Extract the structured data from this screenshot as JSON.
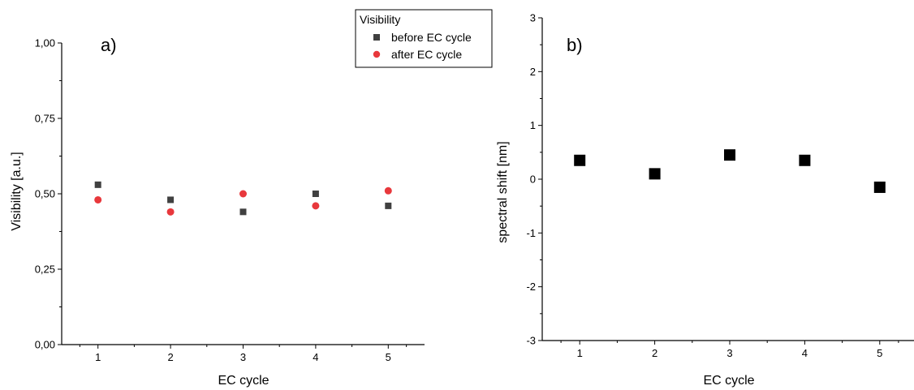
{
  "chart_data": [
    {
      "type": "scatter",
      "panel_label": "a)",
      "xlabel": "EC cycle",
      "ylabel": "Visibility [a.u.]",
      "xlim": [
        0.5,
        5.5
      ],
      "ylim": [
        0,
        1
      ],
      "xticks": [
        1,
        2,
        3,
        4,
        5
      ],
      "xtick_labels": [
        "1",
        "2",
        "3",
        "4",
        "5"
      ],
      "yticks": [
        0,
        0.25,
        0.5,
        0.75,
        1
      ],
      "ytick_labels": [
        "0,00",
        "0,25",
        "0,50",
        "0,75",
        "1,00"
      ],
      "grid": false,
      "legend": {
        "title": "Visibility",
        "position": "top-right"
      },
      "series": [
        {
          "name": "before EC cycle",
          "marker": "square",
          "color": "#404040",
          "x": [
            1,
            2,
            3,
            4,
            5
          ],
          "y": [
            0.53,
            0.48,
            0.44,
            0.5,
            0.46
          ]
        },
        {
          "name": "after EC cycle",
          "marker": "circle",
          "color": "#e8383c",
          "x": [
            1,
            2,
            3,
            4,
            5
          ],
          "y": [
            0.48,
            0.44,
            0.5,
            0.46,
            0.51
          ]
        }
      ]
    },
    {
      "type": "scatter",
      "panel_label": "b)",
      "xlabel": "EC cycle",
      "ylabel": "spectral shift [nm]",
      "xlim": [
        0.5,
        5.5
      ],
      "ylim": [
        -3,
        3
      ],
      "xticks": [
        1,
        2,
        3,
        4,
        5
      ],
      "xtick_labels": [
        "1",
        "2",
        "3",
        "4",
        "5"
      ],
      "yticks": [
        -3,
        -2,
        -1,
        0,
        1,
        2,
        3
      ],
      "ytick_labels": [
        "-3",
        "-2",
        "-1",
        "0",
        "1",
        "2",
        "3"
      ],
      "grid": false,
      "series": [
        {
          "marker": "square",
          "color": "#000000",
          "x": [
            1,
            2,
            3,
            4,
            5
          ],
          "y": [
            0.35,
            0.1,
            0.45,
            0.35,
            -0.15
          ]
        }
      ]
    }
  ]
}
